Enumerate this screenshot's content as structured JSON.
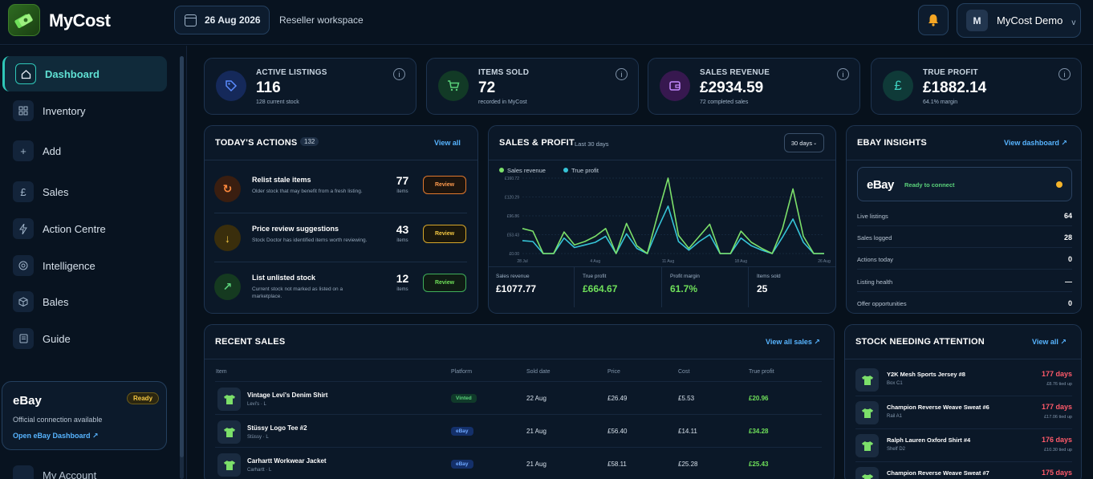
{
  "app": {
    "name": "MyCost"
  },
  "header": {
    "date": "26 Aug 2026",
    "workspace": "Reseller workspace",
    "user_initial": "M",
    "user_name": "MyCost Demo",
    "chevron": "v"
  },
  "sidebar": {
    "items": [
      {
        "label": "Dashboard",
        "icon": "home-icon"
      },
      {
        "label": "Inventory",
        "icon": "grid-icon"
      },
      {
        "label": "Add",
        "icon": "plus-icon"
      },
      {
        "label": "Sales",
        "icon": "pound-icon"
      },
      {
        "label": "Action Centre",
        "icon": "bolt-icon"
      },
      {
        "label": "Intelligence",
        "icon": "target-icon"
      },
      {
        "label": "Bales",
        "icon": "box-icon"
      },
      {
        "label": "Guide",
        "icon": "book-icon"
      }
    ],
    "ebay_card": {
      "title": "eBay",
      "badge": "Ready",
      "subtitle": "Official connection available",
      "link": "Open eBay Dashboard ↗"
    },
    "account": "My Account"
  },
  "stats": [
    {
      "label": "ACTIVE LISTINGS",
      "value": "116",
      "sub": "128 current stock",
      "icon": "tag-icon",
      "color": "#5b8cff"
    },
    {
      "label": "ITEMS SOLD",
      "value": "72",
      "sub": "recorded in MyCost",
      "icon": "cart-icon",
      "color": "#5ad17a"
    },
    {
      "label": "SALES REVENUE",
      "value": "£2934.59",
      "sub": "72 completed sales",
      "icon": "wallet-icon",
      "color": "#c48bff"
    },
    {
      "label": "TRUE PROFIT",
      "value": "£1882.14",
      "sub": "64.1% margin",
      "icon": "pound-icon",
      "color": "#3fd1c0"
    }
  ],
  "actions": {
    "title": "TODAY'S ACTIONS",
    "count": "132",
    "view_all": "View all",
    "items": [
      {
        "title": "Relist stale items",
        "desc": "Older stock that may benefit from a fresh listing.",
        "num": "77",
        "unit": "items",
        "button": "Review",
        "icon": "refresh-icon",
        "glyph": "↻"
      },
      {
        "title": "Price review suggestions",
        "desc": "Stock Doctor has identified items worth reviewing.",
        "num": "43",
        "unit": "items",
        "button": "Review",
        "icon": "arrow-down-icon",
        "glyph": "↓"
      },
      {
        "title": "List unlisted stock",
        "desc": "Current stock not marked as listed on a marketplace.",
        "num": "12",
        "unit": "items",
        "button": "Review",
        "icon": "arrow-up-right-icon",
        "glyph": "↗"
      }
    ]
  },
  "sales_chart": {
    "title": "SALES & PROFIT",
    "subtitle": "Last 30 days",
    "range": "30 days",
    "metrics": [
      {
        "label": "Sales revenue",
        "value": "£1077.77",
        "color": "#ffffff"
      },
      {
        "label": "True profit",
        "value": "£664.67",
        "color": "#6fe05a"
      },
      {
        "label": "Profit margin",
        "value": "61.7%",
        "color": "#6fe05a"
      },
      {
        "label": "Items sold",
        "value": "25",
        "color": "#ffffff"
      }
    ]
  },
  "chart_data": {
    "type": "line",
    "x": [
      "28 Jul",
      "29 Jul",
      "30 Jul",
      "31 Jul",
      "1 Aug",
      "2 Aug",
      "3 Aug",
      "4 Aug",
      "5 Aug",
      "6 Aug",
      "7 Aug",
      "8 Aug",
      "9 Aug",
      "10 Aug",
      "11 Aug",
      "12 Aug",
      "13 Aug",
      "14 Aug",
      "15 Aug",
      "16 Aug",
      "17 Aug",
      "18 Aug",
      "19 Aug",
      "20 Aug",
      "21 Aug",
      "22 Aug",
      "23 Aug",
      "24 Aug",
      "25 Aug",
      "26 Aug"
    ],
    "x_tick_labels": [
      "28 Jul",
      "4 Aug",
      "11 Aug",
      "18 Aug",
      "26 Aug"
    ],
    "y_tick_labels": [
      "£0.00",
      "£53.43",
      "£96.86",
      "£120.29",
      "£160.72"
    ],
    "ylim": [
      0,
      175
    ],
    "series": [
      {
        "name": "Sales revenue",
        "color": "#7ce06a",
        "values": [
          58,
          52,
          0,
          0,
          50,
          20,
          28,
          40,
          58,
          0,
          70,
          18,
          0,
          90,
          175,
          42,
          12,
          40,
          68,
          0,
          0,
          52,
          26,
          12,
          0,
          58,
          150,
          40,
          0,
          0
        ]
      },
      {
        "name": "True profit",
        "color": "#36c3d6",
        "values": [
          30,
          28,
          0,
          0,
          36,
          14,
          20,
          26,
          40,
          0,
          46,
          12,
          0,
          58,
          110,
          28,
          8,
          28,
          44,
          0,
          0,
          36,
          18,
          8,
          0,
          38,
          80,
          26,
          0,
          0
        ]
      }
    ],
    "grid": true,
    "legend": "top-left"
  },
  "insights": {
    "title": "EBAY INSIGHTS",
    "link": "View dashboard ↗",
    "brand": "eBay",
    "status": "Ready to connect",
    "rows": [
      {
        "label": "Live listings",
        "value": "64"
      },
      {
        "label": "Sales logged",
        "value": "28"
      },
      {
        "label": "Actions today",
        "value": "0"
      },
      {
        "label": "Listing health",
        "value": "—"
      },
      {
        "label": "Offer opportunities",
        "value": "0"
      }
    ]
  },
  "recent_sales": {
    "title": "RECENT SALES",
    "link": "View all sales ↗",
    "headers": [
      "Item",
      "Platform",
      "Sold date",
      "Price",
      "Cost",
      "True profit"
    ],
    "rows": [
      {
        "name": "Vintage Levi's Denim Shirt",
        "sub": "Levi's · L",
        "platform": "Vinted",
        "date": "22 Aug",
        "price": "£26.49",
        "cost": "£5.53",
        "profit": "£20.96"
      },
      {
        "name": "Stüssy Logo Tee #2",
        "sub": "Stüssy · L",
        "platform": "eBay",
        "date": "21 Aug",
        "price": "£56.40",
        "cost": "£14.11",
        "profit": "£34.28"
      },
      {
        "name": "Carhartt Workwear Jacket",
        "sub": "Carhartt · L",
        "platform": "eBay",
        "date": "21 Aug",
        "price": "£58.11",
        "cost": "£25.28",
        "profit": "£25.43"
      }
    ]
  },
  "stock_attention": {
    "title": "STOCK NEEDING ATTENTION",
    "link": "View all ↗",
    "rows": [
      {
        "name": "Y2K Mesh Sports Jersey #8",
        "loc": "Box C1",
        "days": "177 days",
        "tied": "£8.76 tied up"
      },
      {
        "name": "Champion Reverse Weave Sweat #6",
        "loc": "Rail A1",
        "days": "177 days",
        "tied": "£17.06 tied up"
      },
      {
        "name": "Ralph Lauren Oxford Shirt #4",
        "loc": "Shelf D2",
        "days": "176 days",
        "tied": "£10.30 tied up"
      },
      {
        "name": "Champion Reverse Weave Sweat #7",
        "loc": "",
        "days": "175 days",
        "tied": ""
      }
    ]
  }
}
